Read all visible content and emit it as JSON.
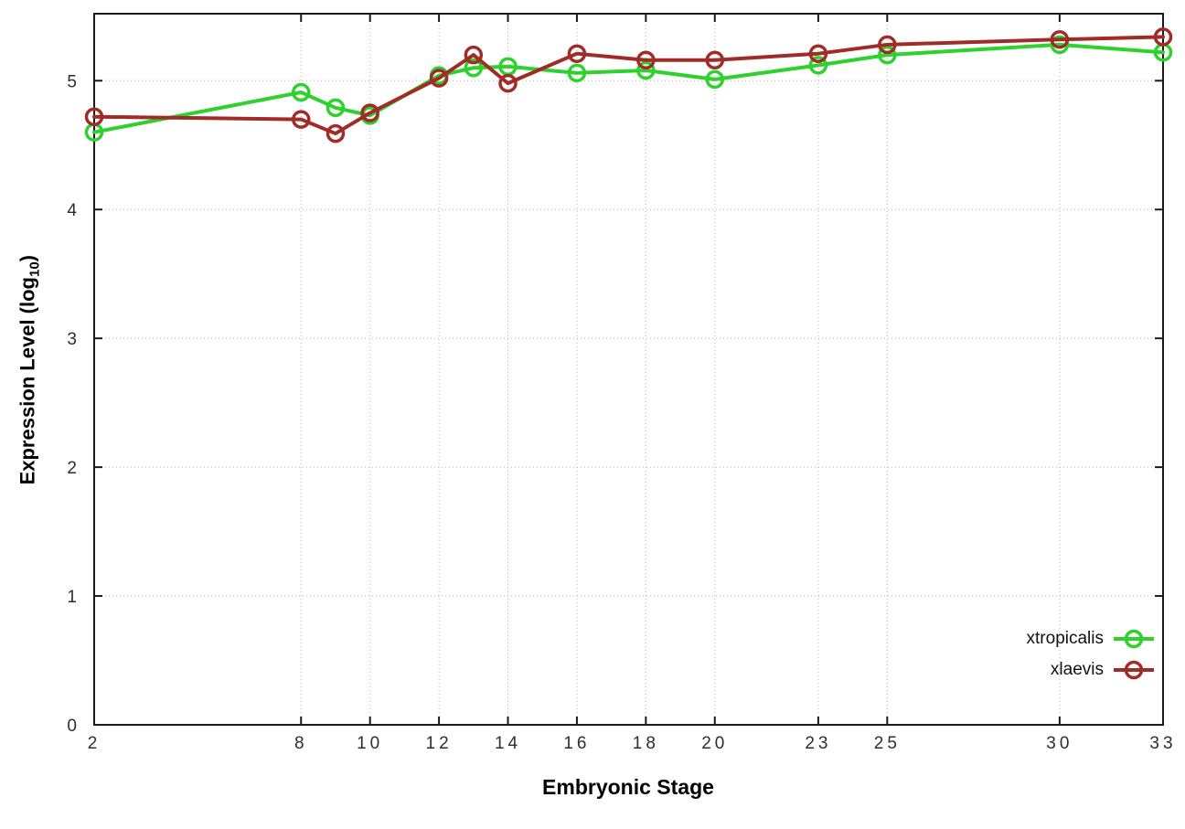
{
  "chart_data": {
    "type": "line",
    "xlabel": "Embryonic Stage",
    "ylabel": "Expression Level (log10)",
    "ylabel_parts": {
      "prefix": "Expression Level (log",
      "sub": "10",
      "suffix": ")"
    },
    "x": [
      2,
      8,
      9,
      10,
      12,
      13,
      14,
      16,
      18,
      20,
      23,
      25,
      30,
      33
    ],
    "x_ticks": [
      2,
      8,
      10,
      12,
      14,
      16,
      18,
      20,
      23,
      25,
      30,
      33
    ],
    "y_ticks": [
      0,
      1,
      2,
      3,
      4,
      5
    ],
    "xlim": [
      2,
      33
    ],
    "ylim": [
      0,
      5.52
    ],
    "grid": true,
    "legend_position": "inside-bottom-right",
    "marker": "open-circle",
    "series": [
      {
        "name": "xtropicalis",
        "color": "#2ed12e",
        "values": [
          4.6,
          4.91,
          4.79,
          4.73,
          5.04,
          5.1,
          5.11,
          5.06,
          5.08,
          5.01,
          5.12,
          5.2,
          5.28,
          5.22
        ]
      },
      {
        "name": "xlaevis",
        "color": "#a02c28",
        "values": [
          4.72,
          4.7,
          4.59,
          4.75,
          5.02,
          5.2,
          4.98,
          5.21,
          5.16,
          5.16,
          5.21,
          5.28,
          5.32,
          5.34
        ]
      }
    ]
  },
  "styles": {
    "background": "#ffffff",
    "axis_color": "#1a1a1a",
    "grid_color": "#b3b3b3",
    "tick_label_color": "#2e2e2e"
  }
}
